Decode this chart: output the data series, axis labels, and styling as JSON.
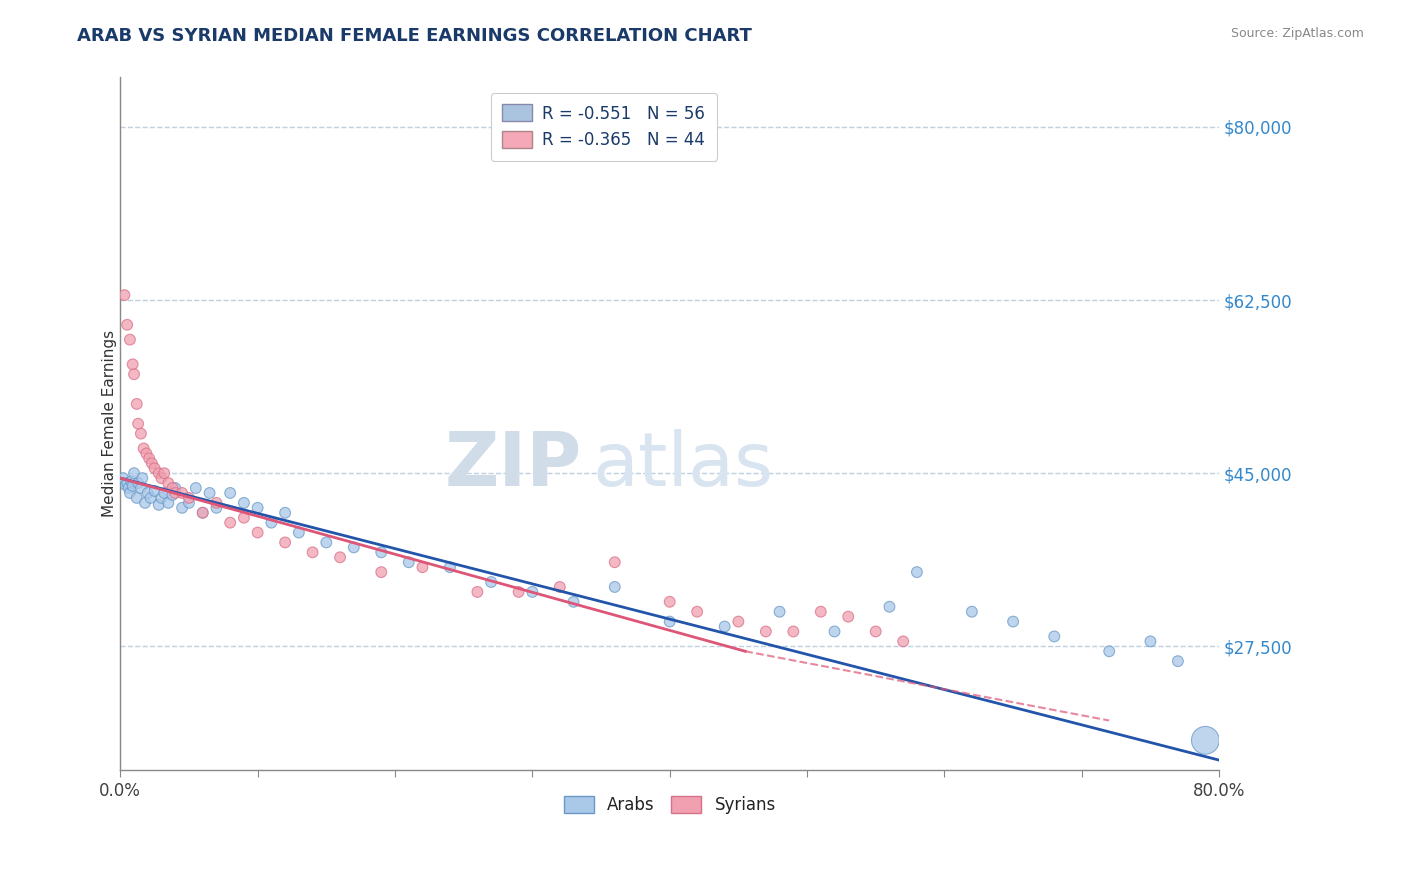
{
  "title": "ARAB VS SYRIAN MEDIAN FEMALE EARNINGS CORRELATION CHART",
  "source_text": "Source: ZipAtlas.com",
  "ylabel": "Median Female Earnings",
  "xlim": [
    0,
    0.8
  ],
  "ylim": [
    15000,
    85000
  ],
  "yticks": [
    27500,
    45000,
    62500,
    80000
  ],
  "ytick_labels": [
    "$27,500",
    "$45,000",
    "$62,500",
    "$80,000"
  ],
  "xtick_positions": [
    0.0,
    0.1,
    0.2,
    0.3,
    0.4,
    0.5,
    0.6,
    0.7,
    0.8
  ],
  "xtick_labels_show": {
    "0.0": "0.0%",
    "0.8": "80.0%"
  },
  "legend_entries": [
    {
      "label": "Arabs",
      "color": "#aac4e0",
      "R": "-0.551",
      "N": "56"
    },
    {
      "label": "Syrians",
      "color": "#f4a8b8",
      "R": "-0.365",
      "N": "44"
    }
  ],
  "watermark_zip": "ZIP",
  "watermark_atlas": "atlas",
  "watermark_color": "#d8e8f2",
  "arab_color": "#aac8e8",
  "arab_edge": "#6898c8",
  "syrian_color": "#f0a0b0",
  "syrian_edge": "#d87088",
  "arab_line_color": "#2255aa",
  "syrian_line_color": "#dd5577",
  "background_color": "#ffffff",
  "grid_color": "#c0d0e0",
  "title_color": "#1a3a6a",
  "axis_label_color": "#333333",
  "right_tick_color": "#3388cc",
  "arab_scatter_x": [
    0.002,
    0.004,
    0.005,
    0.006,
    0.007,
    0.008,
    0.009,
    0.01,
    0.012,
    0.013,
    0.015,
    0.016,
    0.018,
    0.02,
    0.022,
    0.025,
    0.028,
    0.03,
    0.032,
    0.035,
    0.038,
    0.04,
    0.045,
    0.05,
    0.055,
    0.06,
    0.065,
    0.07,
    0.08,
    0.09,
    0.1,
    0.11,
    0.12,
    0.13,
    0.15,
    0.17,
    0.19,
    0.21,
    0.24,
    0.27,
    0.3,
    0.33,
    0.36,
    0.4,
    0.44,
    0.48,
    0.52,
    0.56,
    0.58,
    0.62,
    0.65,
    0.68,
    0.72,
    0.75,
    0.77,
    0.79
  ],
  "arab_scatter_y": [
    44500,
    43800,
    44000,
    43500,
    43000,
    44200,
    43700,
    45000,
    42500,
    44000,
    43500,
    44500,
    42000,
    43000,
    42500,
    43200,
    41800,
    42500,
    43000,
    42000,
    42800,
    43500,
    41500,
    42000,
    43500,
    41000,
    43000,
    41500,
    43000,
    42000,
    41500,
    40000,
    41000,
    39000,
    38000,
    37500,
    37000,
    36000,
    35500,
    34000,
    33000,
    32000,
    33500,
    30000,
    29500,
    31000,
    29000,
    31500,
    35000,
    31000,
    30000,
    28500,
    27000,
    28000,
    26000,
    18000
  ],
  "arab_scatter_sizes": [
    60,
    60,
    60,
    60,
    60,
    60,
    60,
    60,
    60,
    60,
    60,
    60,
    60,
    60,
    60,
    60,
    60,
    60,
    60,
    60,
    60,
    60,
    60,
    60,
    60,
    60,
    60,
    60,
    60,
    60,
    60,
    60,
    60,
    60,
    60,
    60,
    60,
    60,
    60,
    60,
    60,
    60,
    60,
    60,
    60,
    60,
    60,
    60,
    60,
    60,
    60,
    60,
    60,
    60,
    60,
    400
  ],
  "syrian_scatter_x": [
    0.003,
    0.005,
    0.007,
    0.009,
    0.01,
    0.012,
    0.013,
    0.015,
    0.017,
    0.019,
    0.021,
    0.023,
    0.025,
    0.028,
    0.03,
    0.032,
    0.035,
    0.038,
    0.04,
    0.045,
    0.05,
    0.06,
    0.07,
    0.08,
    0.09,
    0.1,
    0.12,
    0.14,
    0.16,
    0.19,
    0.22,
    0.26,
    0.29,
    0.32,
    0.36,
    0.4,
    0.42,
    0.45,
    0.47,
    0.49,
    0.51,
    0.53,
    0.55,
    0.57
  ],
  "syrian_scatter_y": [
    63000,
    60000,
    58500,
    56000,
    55000,
    52000,
    50000,
    49000,
    47500,
    47000,
    46500,
    46000,
    45500,
    45000,
    44500,
    45000,
    44000,
    43500,
    43000,
    43000,
    42500,
    41000,
    42000,
    40000,
    40500,
    39000,
    38000,
    37000,
    36500,
    35000,
    35500,
    33000,
    33000,
    33500,
    36000,
    32000,
    31000,
    30000,
    29000,
    29000,
    31000,
    30500,
    29000,
    28000
  ],
  "syrian_scatter_sizes": [
    60,
    60,
    60,
    60,
    60,
    60,
    60,
    60,
    60,
    60,
    60,
    60,
    60,
    60,
    60,
    60,
    60,
    60,
    60,
    60,
    60,
    60,
    60,
    60,
    60,
    60,
    60,
    60,
    60,
    60,
    60,
    60,
    60,
    60,
    60,
    60,
    60,
    60,
    60,
    60,
    60,
    60,
    60,
    60
  ],
  "arab_line": {
    "x0": 0.0,
    "x1": 0.8,
    "y0": 44500,
    "y1": 16000
  },
  "syrian_line_solid": {
    "x0": 0.0,
    "x1": 0.455,
    "y0": 44500,
    "y1": 27000
  },
  "syrian_line_dashed": {
    "x0": 0.455,
    "x1": 0.72,
    "y0": 27000,
    "y1": 20000
  }
}
